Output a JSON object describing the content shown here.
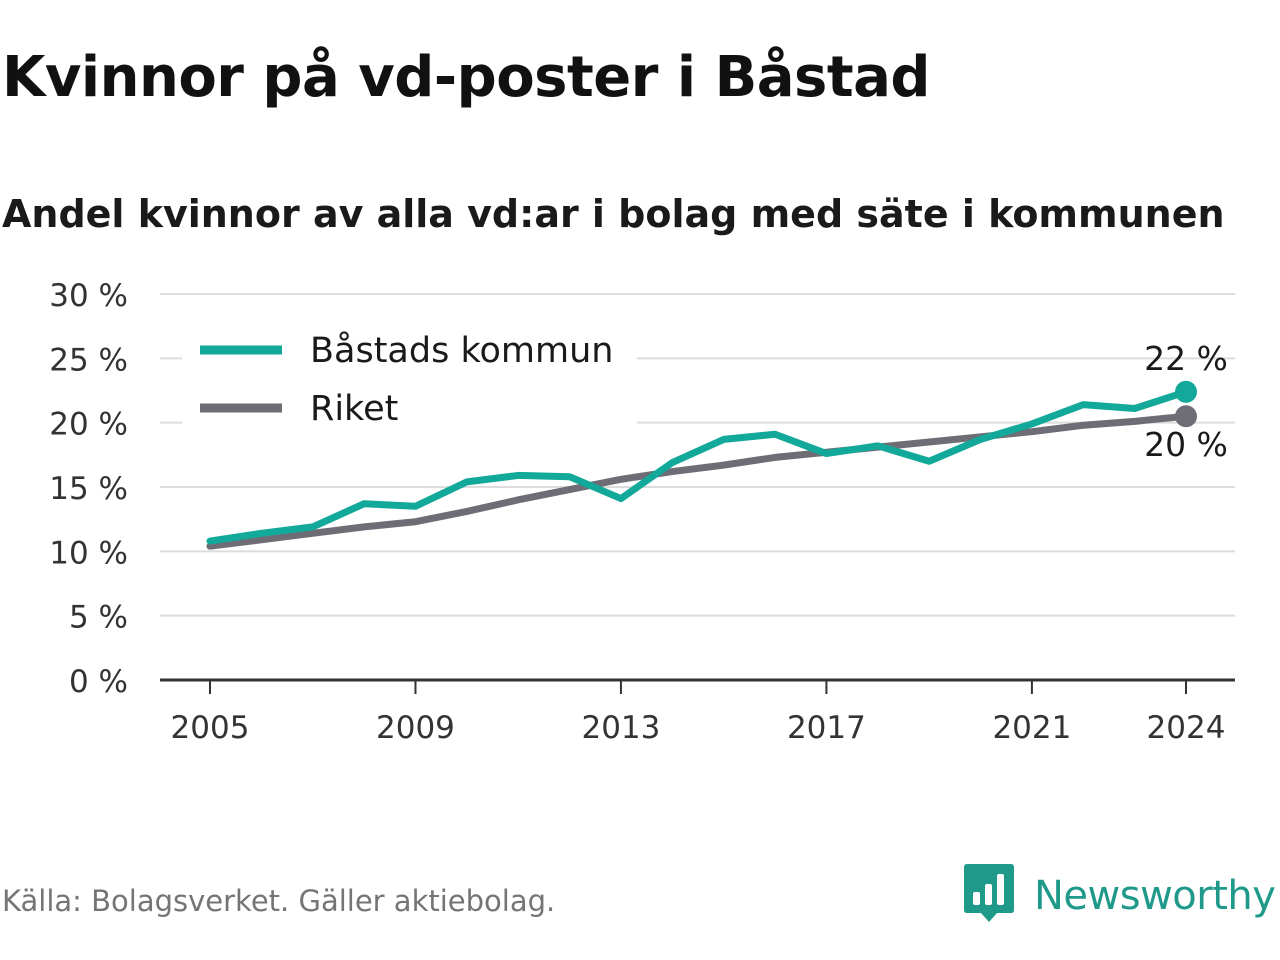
{
  "title": "Kvinnor på vd-poster i Båstad",
  "subtitle": "Andel kvinnor av alla vd:ar i bolag med säte i kommunen",
  "source": "Källa: Bolagsverket. Gäller aktiebolag.",
  "brand": {
    "name": "Newsworthy",
    "icon": "newsworthy-logo-icon",
    "color": "#1f9a8a"
  },
  "chart_data": {
    "type": "line",
    "x": [
      2005,
      2006,
      2007,
      2008,
      2009,
      2010,
      2011,
      2012,
      2013,
      2014,
      2015,
      2016,
      2017,
      2018,
      2019,
      2020,
      2021,
      2022,
      2023,
      2024
    ],
    "series": [
      {
        "name": "Båstads kommun",
        "color": "#12a89a",
        "values": [
          10.8,
          11.4,
          11.9,
          13.7,
          13.5,
          15.4,
          15.9,
          15.8,
          14.1,
          16.9,
          18.7,
          19.1,
          17.6,
          18.2,
          17.0,
          18.7,
          19.9,
          21.4,
          21.1,
          22.4
        ]
      },
      {
        "name": "Riket",
        "color": "#6e6d75",
        "values": [
          10.4,
          10.9,
          11.4,
          11.9,
          12.3,
          13.1,
          14.0,
          14.8,
          15.6,
          16.2,
          16.7,
          17.3,
          17.7,
          18.1,
          18.5,
          18.9,
          19.3,
          19.8,
          20.1,
          20.5
        ]
      }
    ],
    "end_labels": [
      "22 %",
      "20 %"
    ],
    "ylim": [
      0,
      30
    ],
    "yticks": [
      0,
      5,
      10,
      15,
      20,
      25,
      30
    ],
    "ytick_labels": [
      "0 %",
      "5 %",
      "10 %",
      "15 %",
      "20 %",
      "25 %",
      "30 %"
    ],
    "xticks": [
      2005,
      2009,
      2013,
      2017,
      2021,
      2024
    ],
    "xtick_labels": [
      "2005",
      "2009",
      "2013",
      "2017",
      "2021",
      "2024"
    ],
    "xlabel": "",
    "ylabel": "",
    "grid": true,
    "legend": "top-left"
  }
}
